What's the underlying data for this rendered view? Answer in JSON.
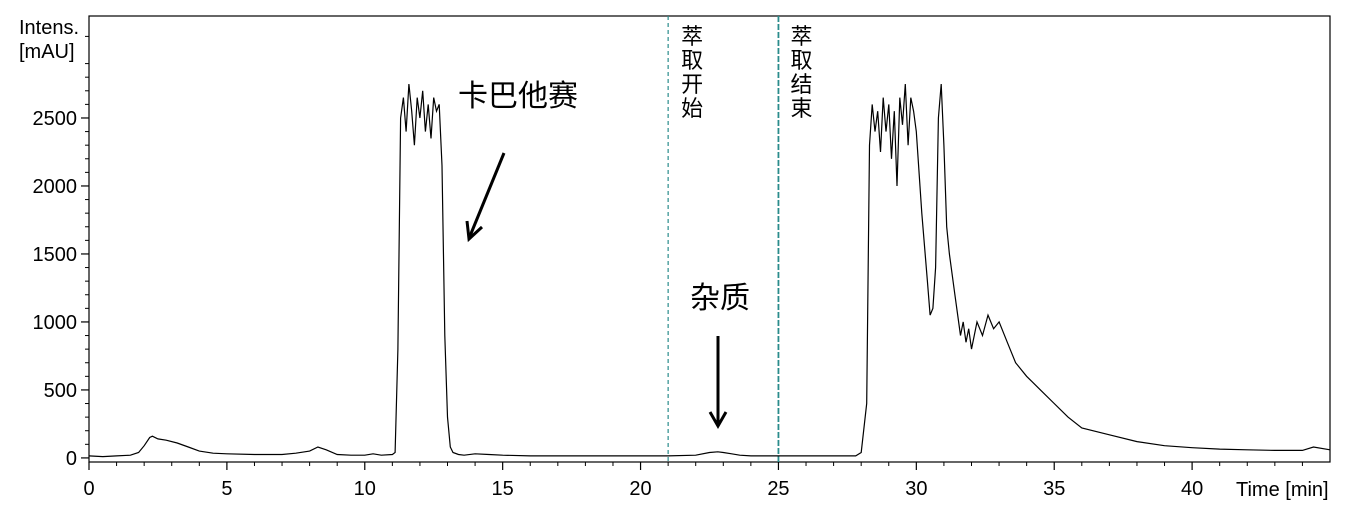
{
  "chart_data": {
    "type": "line",
    "title": "",
    "xlabel": "Time [min]",
    "ylabel_line1": "Intens.",
    "ylabel_line2": "[mAU]",
    "xlim": [
      0,
      45
    ],
    "ylim": [
      -30,
      3250
    ],
    "x_ticks": [
      0,
      5,
      10,
      15,
      20,
      25,
      30,
      35,
      40
    ],
    "y_ticks": [
      0,
      500,
      1000,
      1500,
      2000,
      2500
    ],
    "grid": false,
    "line_color": "#000000",
    "marker_color": "#2a8c8c",
    "series": [
      {
        "x": [
          0,
          0.5,
          1.0,
          1.5,
          1.8,
          2.0,
          2.2,
          2.3,
          2.5,
          2.8,
          3.2,
          3.6,
          4.0,
          4.5,
          5.0,
          6.0,
          7.0,
          7.5,
          8.0,
          8.3,
          8.6,
          9.0,
          9.5,
          10.0,
          10.3,
          10.6,
          11.0,
          11.1,
          11.2,
          11.3,
          11.4,
          11.5,
          11.6,
          11.7,
          11.8,
          11.9,
          12.0,
          12.1,
          12.2,
          12.3,
          12.4,
          12.5,
          12.6,
          12.7,
          12.8,
          12.9,
          13.0,
          13.1,
          13.2,
          13.4,
          13.6,
          14.0,
          14.5,
          15.0,
          16.0,
          17.0,
          18.0,
          19.0,
          20.0,
          21.0,
          22.0,
          22.5,
          22.8,
          23.0,
          23.3,
          23.6,
          24.0,
          24.5,
          25.0,
          26.0,
          27.0,
          27.8,
          28.0,
          28.2,
          28.3,
          28.4,
          28.5,
          28.6,
          28.7,
          28.8,
          28.9,
          29.0,
          29.1,
          29.2,
          29.3,
          29.4,
          29.5,
          29.6,
          29.7,
          29.8,
          29.9,
          30.0,
          30.2,
          30.4,
          30.5,
          30.6,
          30.7,
          30.8,
          30.9,
          31.0,
          31.1,
          31.2,
          31.4,
          31.6,
          31.7,
          31.8,
          31.9,
          32.0,
          32.2,
          32.4,
          32.6,
          32.8,
          33.0,
          33.3,
          33.6,
          34.0,
          34.5,
          35.0,
          35.5,
          36.0,
          37.0,
          38.0,
          39.0,
          40.0,
          41.0,
          42.0,
          43.0,
          44.0,
          44.4,
          45.0
        ],
        "y": [
          15,
          10,
          15,
          20,
          40,
          90,
          150,
          160,
          140,
          130,
          110,
          80,
          50,
          35,
          30,
          25,
          25,
          35,
          50,
          80,
          60,
          25,
          20,
          20,
          30,
          20,
          25,
          40,
          800,
          2500,
          2650,
          2400,
          2750,
          2550,
          2300,
          2650,
          2500,
          2700,
          2400,
          2600,
          2350,
          2650,
          2550,
          2600,
          2150,
          900,
          300,
          80,
          40,
          25,
          20,
          30,
          25,
          20,
          15,
          15,
          15,
          15,
          15,
          15,
          20,
          40,
          45,
          40,
          30,
          20,
          15,
          15,
          15,
          15,
          15,
          15,
          40,
          400,
          2300,
          2600,
          2400,
          2550,
          2250,
          2650,
          2400,
          2600,
          2200,
          2550,
          2000,
          2650,
          2450,
          2750,
          2300,
          2650,
          2550,
          2400,
          1800,
          1300,
          1050,
          1100,
          1400,
          2500,
          2750,
          2300,
          1700,
          1500,
          1200,
          900,
          1000,
          850,
          950,
          800,
          1000,
          900,
          1050,
          950,
          1000,
          850,
          700,
          600,
          500,
          400,
          300,
          220,
          170,
          120,
          90,
          75,
          65,
          60,
          55,
          55,
          80,
          60
        ]
      }
    ],
    "annotations": {
      "carbazole": "卡巴他赛",
      "impurity": "杂质",
      "extract_start": "萃取开始",
      "extract_end": "萃取结束"
    },
    "markers": [
      21.0,
      25.0
    ]
  }
}
